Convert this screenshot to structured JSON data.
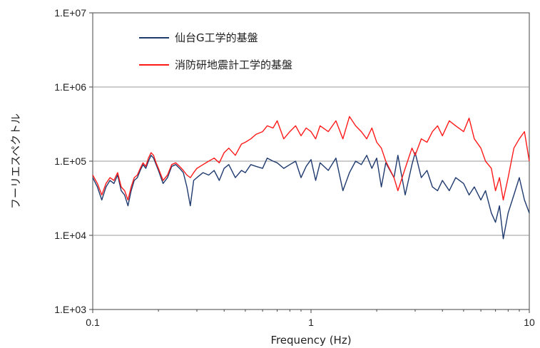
{
  "chart_data": {
    "type": "line",
    "xlabel": "Frequency (Hz)",
    "ylabel": "フーリエスペクトル",
    "x_scale": "log",
    "y_scale": "log",
    "xlim": [
      0.1,
      10
    ],
    "ylim": [
      1000,
      10000000
    ],
    "x_ticks": [
      {
        "value": 0.1,
        "label": "0.1"
      },
      {
        "value": 1,
        "label": "1"
      },
      {
        "value": 10,
        "label": "10"
      }
    ],
    "y_ticks": [
      {
        "value": 1000,
        "label": "1.E+03"
      },
      {
        "value": 10000,
        "label": "1.E+04"
      },
      {
        "value": 100000,
        "label": "1.E+05"
      },
      {
        "value": 1000000,
        "label": "1.E+06"
      },
      {
        "value": 10000000,
        "label": "1.E+07"
      }
    ],
    "grid": "horizontal",
    "legend_position": "top-left",
    "series": [
      {
        "name": "仙台G工学的基盤",
        "color": "#1f3a6e",
        "x": [
          0.1,
          0.105,
          0.11,
          0.115,
          0.12,
          0.125,
          0.13,
          0.135,
          0.14,
          0.145,
          0.15,
          0.155,
          0.16,
          0.165,
          0.17,
          0.175,
          0.18,
          0.185,
          0.19,
          0.195,
          0.2,
          0.21,
          0.22,
          0.23,
          0.24,
          0.25,
          0.26,
          0.27,
          0.28,
          0.29,
          0.3,
          0.32,
          0.34,
          0.36,
          0.38,
          0.4,
          0.42,
          0.45,
          0.48,
          0.5,
          0.53,
          0.56,
          0.6,
          0.63,
          0.67,
          0.7,
          0.75,
          0.8,
          0.85,
          0.9,
          0.95,
          1.0,
          1.05,
          1.1,
          1.2,
          1.3,
          1.4,
          1.5,
          1.6,
          1.7,
          1.8,
          1.9,
          2.0,
          2.1,
          2.2,
          2.4,
          2.5,
          2.7,
          2.9,
          3.0,
          3.2,
          3.4,
          3.6,
          3.8,
          4.0,
          4.3,
          4.6,
          5.0,
          5.3,
          5.6,
          6.0,
          6.3,
          6.7,
          7.0,
          7.3,
          7.6,
          8.0,
          8.5,
          9.0,
          9.5,
          10.0
        ],
        "values": [
          60000,
          45000,
          30000,
          45000,
          55000,
          50000,
          65000,
          40000,
          35000,
          25000,
          40000,
          55000,
          60000,
          75000,
          90000,
          80000,
          100000,
          120000,
          110000,
          90000,
          75000,
          50000,
          60000,
          85000,
          90000,
          80000,
          70000,
          45000,
          25000,
          55000,
          60000,
          70000,
          65000,
          75000,
          55000,
          80000,
          90000,
          60000,
          75000,
          70000,
          90000,
          85000,
          80000,
          110000,
          100000,
          95000,
          80000,
          90000,
          100000,
          60000,
          85000,
          105000,
          55000,
          95000,
          75000,
          110000,
          40000,
          70000,
          100000,
          90000,
          120000,
          80000,
          110000,
          45000,
          95000,
          60000,
          120000,
          35000,
          90000,
          130000,
          60000,
          75000,
          45000,
          40000,
          55000,
          40000,
          60000,
          50000,
          35000,
          45000,
          30000,
          40000,
          20000,
          15000,
          25000,
          9000,
          20000,
          35000,
          60000,
          30000,
          20000
        ]
      },
      {
        "name": "消防研地震計工学的基盤",
        "color": "#ff1a1a",
        "x": [
          0.1,
          0.105,
          0.11,
          0.115,
          0.12,
          0.125,
          0.13,
          0.135,
          0.14,
          0.145,
          0.15,
          0.155,
          0.16,
          0.165,
          0.17,
          0.175,
          0.18,
          0.185,
          0.19,
          0.195,
          0.2,
          0.21,
          0.22,
          0.23,
          0.24,
          0.25,
          0.26,
          0.27,
          0.28,
          0.29,
          0.3,
          0.32,
          0.34,
          0.36,
          0.38,
          0.4,
          0.42,
          0.45,
          0.48,
          0.5,
          0.53,
          0.56,
          0.6,
          0.63,
          0.67,
          0.7,
          0.75,
          0.8,
          0.85,
          0.9,
          0.95,
          1.0,
          1.05,
          1.1,
          1.2,
          1.3,
          1.4,
          1.5,
          1.6,
          1.7,
          1.8,
          1.9,
          2.0,
          2.1,
          2.2,
          2.4,
          2.5,
          2.7,
          2.9,
          3.0,
          3.2,
          3.4,
          3.6,
          3.8,
          4.0,
          4.3,
          4.6,
          5.0,
          5.3,
          5.6,
          6.0,
          6.3,
          6.7,
          7.0,
          7.3,
          7.6,
          8.0,
          8.5,
          9.0,
          9.5,
          10.0
        ],
        "values": [
          65000,
          50000,
          35000,
          50000,
          60000,
          55000,
          70000,
          45000,
          40000,
          30000,
          45000,
          60000,
          65000,
          80000,
          95000,
          85000,
          110000,
          130000,
          120000,
          95000,
          80000,
          55000,
          65000,
          90000,
          95000,
          85000,
          75000,
          65000,
          60000,
          70000,
          80000,
          90000,
          100000,
          110000,
          95000,
          130000,
          150000,
          120000,
          170000,
          180000,
          200000,
          230000,
          250000,
          300000,
          280000,
          350000,
          200000,
          250000,
          300000,
          220000,
          280000,
          250000,
          200000,
          300000,
          250000,
          350000,
          200000,
          400000,
          300000,
          250000,
          200000,
          280000,
          180000,
          150000,
          100000,
          60000,
          40000,
          80000,
          150000,
          120000,
          200000,
          180000,
          250000,
          300000,
          220000,
          350000,
          300000,
          250000,
          380000,
          200000,
          150000,
          100000,
          80000,
          40000,
          60000,
          30000,
          60000,
          150000,
          200000,
          250000,
          100000
        ]
      }
    ]
  }
}
